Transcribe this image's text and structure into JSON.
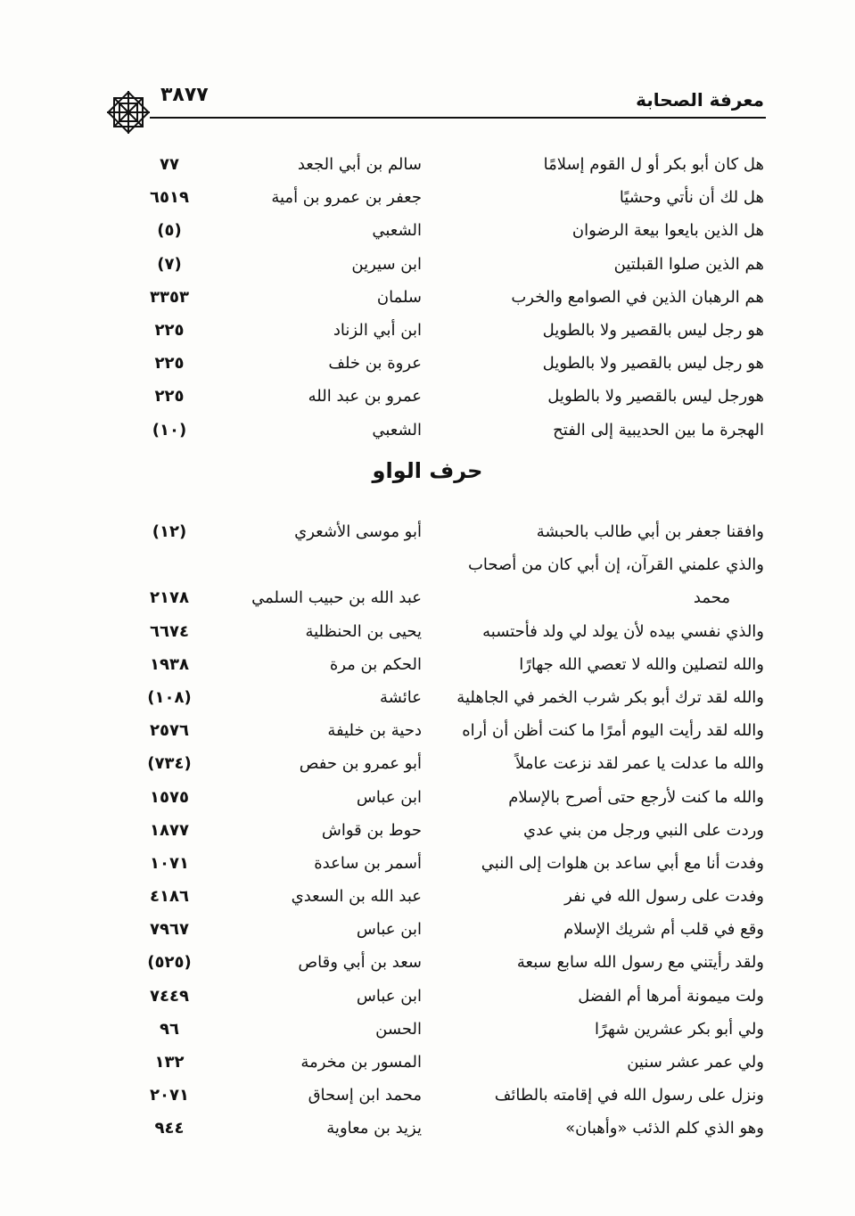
{
  "header": {
    "title": "معرفة الصحابة",
    "page_number": "٣٨٧٧",
    "ornament": "octagonal-star-ornament"
  },
  "section1": [
    {
      "text": "هل كان أبو بكر أو ل القوم إسلامًا",
      "narrator": "سالم بن أبي الجعد",
      "ref": "٧٧"
    },
    {
      "text": "هل لك أن نأتي وحشيًا",
      "narrator": "جعفر بن عمرو بن أمية",
      "ref": "٦٥١٩"
    },
    {
      "text": "هل الذين بايعوا بيعة الرضوان",
      "narrator": "الشعبي",
      "ref": "(٥)"
    },
    {
      "text": "هم الذين صلوا القبلتين",
      "narrator": "ابن سيرين",
      "ref": "(٧)"
    },
    {
      "text": "هم الرهبان الذين في الصوامع والخرب",
      "narrator": "سلمان",
      "ref": "٣٣٥٣"
    },
    {
      "text": "هو رجل ليس بالقصير ولا بالطويل",
      "narrator": "ابن أبي الزناد",
      "ref": "٢٢٥"
    },
    {
      "text": "هو رجل ليس بالقصير ولا بالطويل",
      "narrator": "عروة بن خلف",
      "ref": "٢٢٥"
    },
    {
      "text": "هورجل ليس بالقصير ولا بالطويل",
      "narrator": "عمرو بن عبد الله",
      "ref": "٢٢٥"
    },
    {
      "text": "الهجرة ما بين الحديبية إلى الفتح",
      "narrator": "الشعبي",
      "ref": "(١٠)"
    }
  ],
  "heading": "حرف الواو",
  "section2": [
    {
      "text": "وافقنا جعفر بن أبي طالب بالحبشة",
      "narrator": "أبو موسى الأشعري",
      "ref": "(١٢)"
    },
    {
      "text": "والذي علمني القرآن، إن أبي كان من أصحاب",
      "narrator": "",
      "ref": ""
    },
    {
      "cont": "محمد",
      "narrator": "عبد الله بن حبيب السلمي",
      "ref": "٢١٧٨"
    },
    {
      "text": "والذي نفسي بيده لأن يولد لي ولد فأحتسبه",
      "narrator": "يحيى بن الحنظلية",
      "ref": "٦٦٧٤"
    },
    {
      "text": "والله لتصلين والله لا تعصي الله جهارًا",
      "narrator": "الحكم بن مرة",
      "ref": "١٩٣٨"
    },
    {
      "text": "والله لقد ترك أبو بكر شرب الخمر في الجاهلية",
      "narrator": "عائشة",
      "ref": "(١٠٨)"
    },
    {
      "text": "والله لقد رأيت اليوم أمرًا ما كنت أظن أن أراه",
      "narrator": "دحية بن خليفة",
      "ref": "٢٥٧٦"
    },
    {
      "text": "والله ما عدلت يا عمر لقد نزعت عاملاً",
      "narrator": "أبو عمرو بن حفص",
      "ref": "(٧٣٤)"
    },
    {
      "text": "والله ما كنت لأرجع حتى أصرح بالإسلام",
      "narrator": "ابن عباس",
      "ref": "١٥٧٥"
    },
    {
      "text": "وردت على النبي ورجل من بني عدي",
      "narrator": "حوط بن قواش",
      "ref": "١٨٧٧"
    },
    {
      "text": "وفدت أنا مع أبي ساعد بن هلوات إلى النبي",
      "narrator": "أسمر بن ساعدة",
      "ref": "١٠٧١"
    },
    {
      "text": "وفدت على رسول الله في نفر",
      "narrator": "عبد الله بن السعدي",
      "ref": "٤١٨٦"
    },
    {
      "text": "وقع في قلب أم شريك الإسلام",
      "narrator": "ابن عباس",
      "ref": "٧٩٦٧"
    },
    {
      "text": "ولقد رأيتني مع رسول الله سابع سبعة",
      "narrator": "سعد بن أبي وقاص",
      "ref": "(٥٢٥)"
    },
    {
      "text": "ولت ميمونة  أمرها أم الفضل",
      "narrator": "ابن عباس",
      "ref": "٧٤٤٩"
    },
    {
      "text": "ولي أبو بكر عشرين شهرًا",
      "narrator": "الحسن",
      "ref": "٩٦"
    },
    {
      "text": "ولي عمر عشر سنين",
      "narrator": "المسور بن مخرمة",
      "ref": "١٣٢"
    },
    {
      "text": "ونزل على رسول الله في إقامته بالطائف",
      "narrator": "محمد ابن إسحاق",
      "ref": "٢٠٧١"
    },
    {
      "text": "وهو الذي كلم الذئب «وأهبان»",
      "narrator": "يزيد بن معاوية",
      "ref": "٩٤٤"
    }
  ]
}
